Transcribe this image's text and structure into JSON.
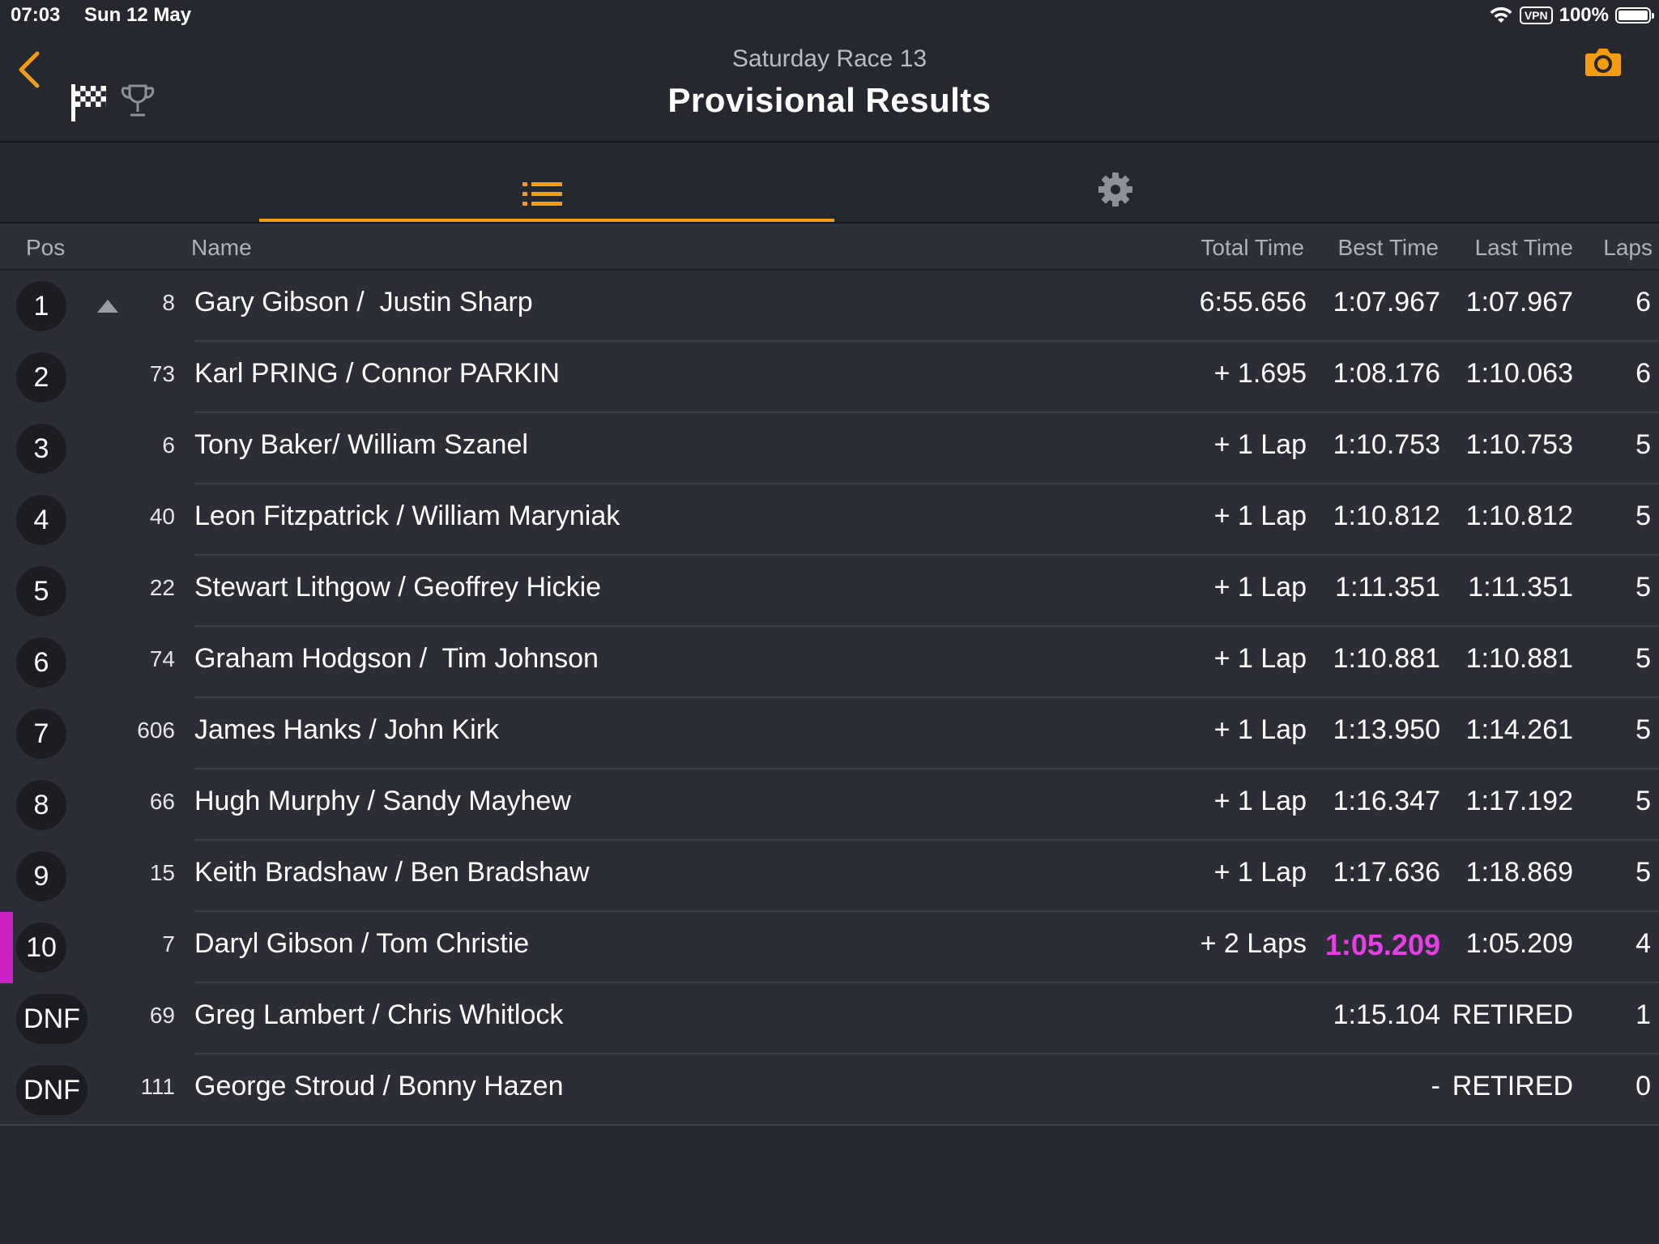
{
  "status": {
    "time": "07:03",
    "date": "Sun 12 May",
    "vpn": "VPN",
    "battery": "100%"
  },
  "header": {
    "subtitle": "Saturday Race 13",
    "title": "Provisional Results",
    "accent": "#f39c12"
  },
  "table": {
    "headers": {
      "pos": "Pos",
      "name": "Name",
      "total": "Total Time",
      "best": "Best Time",
      "last": "Last Time",
      "laps": "Laps"
    },
    "rows": [
      {
        "pos": "1",
        "num": "8",
        "name": "Gary Gibson /  Justin Sharp",
        "total": "6:55.656",
        "best": "1:07.967",
        "last": "1:07.967",
        "laps": "6"
      },
      {
        "pos": "2",
        "num": "73",
        "name": "Karl PRING / Connor PARKIN",
        "total": "+ 1.695",
        "best": "1:08.176",
        "last": "1:10.063",
        "laps": "6"
      },
      {
        "pos": "3",
        "num": "6",
        "name": "Tony Baker/ William Szanel",
        "total": "+ 1 Lap",
        "best": "1:10.753",
        "last": "1:10.753",
        "laps": "5"
      },
      {
        "pos": "4",
        "num": "40",
        "name": "Leon Fitzpatrick / William Maryniak",
        "total": "+ 1 Lap",
        "best": "1:10.812",
        "last": "1:10.812",
        "laps": "5"
      },
      {
        "pos": "5",
        "num": "22",
        "name": "Stewart Lithgow / Geoffrey Hickie",
        "total": "+ 1 Lap",
        "best": "1:11.351",
        "last": "1:11.351",
        "laps": "5"
      },
      {
        "pos": "6",
        "num": "74",
        "name": "Graham Hodgson /  Tim Johnson",
        "total": "+ 1 Lap",
        "best": "1:10.881",
        "last": "1:10.881",
        "laps": "5"
      },
      {
        "pos": "7",
        "num": "606",
        "name": "James Hanks / John Kirk",
        "total": "+ 1 Lap",
        "best": "1:13.950",
        "last": "1:14.261",
        "laps": "5"
      },
      {
        "pos": "8",
        "num": "66",
        "name": "Hugh Murphy / Sandy Mayhew",
        "total": "+ 1 Lap",
        "best": "1:16.347",
        "last": "1:17.192",
        "laps": "5"
      },
      {
        "pos": "9",
        "num": "15",
        "name": "Keith Bradshaw / Ben Bradshaw",
        "total": "+ 1 Lap",
        "best": "1:17.636",
        "last": "1:18.869",
        "laps": "5"
      },
      {
        "pos": "10",
        "num": "7",
        "name": "Daryl Gibson / Tom Christie",
        "total": "+ 2 Laps",
        "best": "1:05.209",
        "last": "1:05.209",
        "laps": "4"
      },
      {
        "pos": "DNF",
        "num": "69",
        "name": "Greg Lambert / Chris Whitlock",
        "total": "",
        "best": "1:15.104",
        "last": "RETIRED",
        "laps": "1"
      },
      {
        "pos": "DNF",
        "num": "111",
        "name": "George Stroud / Bonny Hazen",
        "total": "",
        "best": "-",
        "last": "RETIRED",
        "laps": "0"
      }
    ]
  },
  "colors": {
    "fastest_lap": "#e83ee6",
    "highlight_bar": "#cc22c8"
  }
}
